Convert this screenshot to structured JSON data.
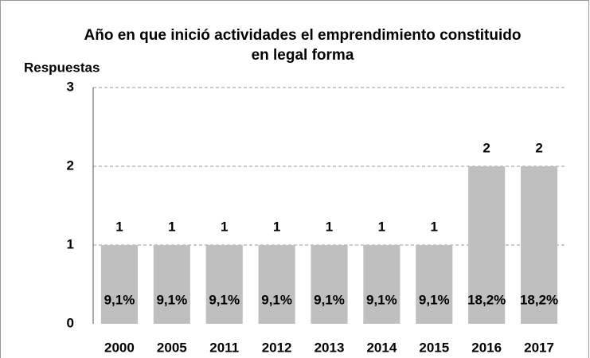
{
  "chart_data": {
    "type": "bar",
    "title": "Año en que inició actividades el emprendimiento constituido en legal forma",
    "y_label": "Respuestas",
    "categories": [
      "2000",
      "2005",
      "2011",
      "2012",
      "2013",
      "2014",
      "2015",
      "2016",
      "2017"
    ],
    "values": [
      1,
      1,
      1,
      1,
      1,
      1,
      1,
      2,
      2
    ],
    "share_labels": [
      "9,1%",
      "9,1%",
      "9,1%",
      "9,1%",
      "9,1%",
      "9,1%",
      "9,1%",
      "18,2%",
      "18,2%"
    ],
    "color": "#bfbfbf",
    "ylim": [
      0,
      3
    ],
    "yticks": [
      0,
      1,
      2,
      3
    ],
    "grid": true
  }
}
